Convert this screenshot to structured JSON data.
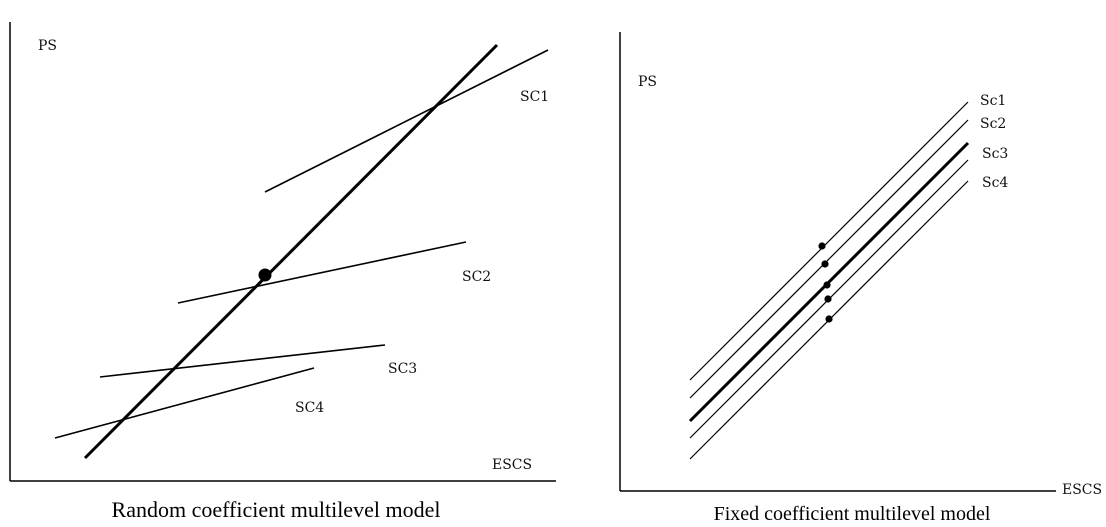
{
  "left": {
    "y_label": "PS",
    "x_label": "ESCS",
    "caption": "Random coefficient multilevel model",
    "series": [
      "SC1",
      "SC2",
      "SC3",
      "SC4"
    ]
  },
  "right": {
    "y_label": "PS",
    "x_label": "ESCS",
    "caption": "Fixed coefficient multilevel model",
    "series": [
      "Sc1",
      "Sc2",
      "Sc3",
      "Sc4"
    ]
  }
}
